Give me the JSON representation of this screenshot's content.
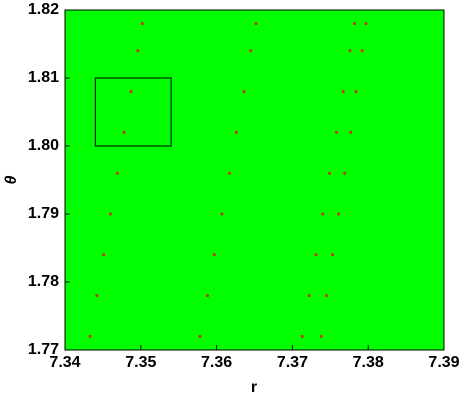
{
  "chart_data": {
    "type": "scatter",
    "x_label": "r",
    "y_label": "θ",
    "background": "#00ff00",
    "color": "#c83200",
    "x": [
      7.3433,
      7.3442,
      7.3451,
      7.346,
      7.3469,
      7.3478,
      7.3487,
      7.3496,
      7.3502,
      7.3578,
      7.3588,
      7.3597,
      7.3607,
      7.3617,
      7.3626,
      7.3636,
      7.3645,
      7.3652,
      7.3713,
      7.3722,
      7.3731,
      7.374,
      7.3749,
      7.3758,
      7.3767,
      7.3776,
      7.3782,
      7.3738,
      7.3745,
      7.3753,
      7.3761,
      7.3769,
      7.3777,
      7.3784,
      7.3792,
      7.3797
    ],
    "y": [
      1.772,
      1.778,
      1.784,
      1.79,
      1.796,
      1.802,
      1.808,
      1.814,
      1.818,
      1.772,
      1.778,
      1.784,
      1.79,
      1.796,
      1.802,
      1.808,
      1.814,
      1.818,
      1.772,
      1.778,
      1.784,
      1.79,
      1.796,
      1.802,
      1.808,
      1.814,
      1.818,
      1.772,
      1.778,
      1.784,
      1.79,
      1.796,
      1.802,
      1.808,
      1.814,
      1.818
    ],
    "xlim": [
      7.34,
      7.39
    ],
    "ylim": [
      1.77,
      1.82
    ],
    "xticks": [
      7.34,
      7.35,
      7.36,
      7.37,
      7.38,
      7.39
    ],
    "yticks": [
      1.77,
      1.78,
      1.79,
      {
        "value": 1.8,
        "label": "1.80"
      },
      1.81,
      1.82
    ],
    "highlight_box": {
      "xlim": [
        7.344,
        7.354
      ],
      "ylim": [
        1.8,
        1.81
      ]
    }
  }
}
